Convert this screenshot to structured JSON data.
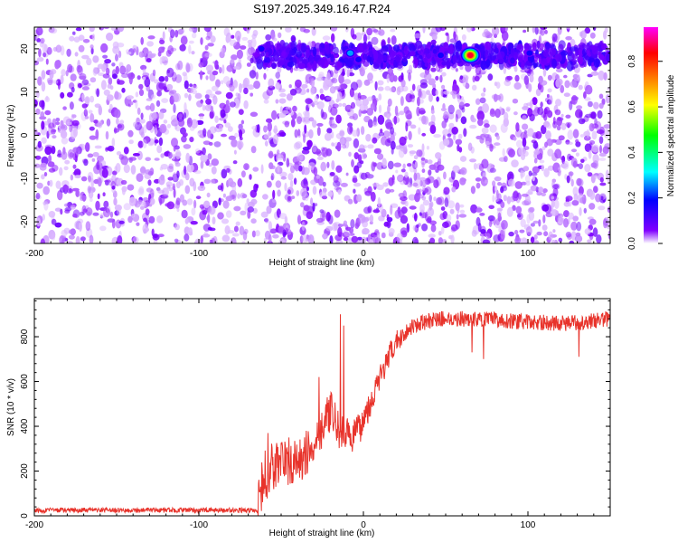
{
  "title": "S197.2025.349.16.47.R24",
  "chart_data": [
    {
      "type": "heatmap",
      "xlabel": "Height of straight line (km)",
      "ylabel": "Frequency (Hz)",
      "xlim": [
        -200,
        150
      ],
      "ylim": [
        -25,
        25
      ],
      "xticks": [
        -200,
        -100,
        0,
        100
      ],
      "yticks": [
        -20,
        -10,
        0,
        10,
        20
      ],
      "colorbar": {
        "label": "Normalized spectral amplitude",
        "range": [
          0,
          0.95
        ],
        "ticks": [
          "0.0",
          "0.2",
          "0.4",
          "0.6",
          "0.8"
        ],
        "tick_values": [
          0.0,
          0.2,
          0.4,
          0.6,
          0.8
        ],
        "colors": [
          "#ffffff",
          "#8000ff",
          "#0000ff",
          "#00ffff",
          "#00ff00",
          "#ffff00",
          "#ff8000",
          "#ff0000",
          "#ff00ff"
        ]
      },
      "signal_band_hz": [
        16,
        21
      ],
      "dropout_columns_km": [
        -62,
        64
      ],
      "hot_spots": [
        {
          "x": -62,
          "y": 20,
          "amp": 0.25
        },
        {
          "x": -8,
          "y": 19,
          "amp": 0.28
        },
        {
          "x": -3,
          "y": 17.5,
          "amp": 0.22
        },
        {
          "x": 47,
          "y": 18.5,
          "amp": 0.27
        },
        {
          "x": 65,
          "y": 18.5,
          "amp": 0.9
        },
        {
          "x": 101,
          "y": 19,
          "amp": 0.22
        }
      ]
    },
    {
      "type": "line",
      "xlabel": "Height of straight line (km)",
      "ylabel": "SNR (10 * v/v)",
      "xlim": [
        -200,
        150
      ],
      "ylim": [
        0,
        970
      ],
      "xticks": [
        -200,
        -100,
        0,
        100
      ],
      "yticks": [
        0,
        200,
        400,
        600,
        800
      ],
      "color": "#e8332b",
      "trend": [
        {
          "x": -200,
          "y": 25
        },
        {
          "x": -64,
          "y": 25
        },
        {
          "x": -60,
          "y": 180
        },
        {
          "x": -50,
          "y": 250
        },
        {
          "x": -40,
          "y": 230
        },
        {
          "x": -30,
          "y": 320
        },
        {
          "x": -25,
          "y": 400
        },
        {
          "x": -20,
          "y": 470
        },
        {
          "x": -15,
          "y": 380
        },
        {
          "x": -8,
          "y": 350
        },
        {
          "x": -3,
          "y": 380
        },
        {
          "x": 5,
          "y": 520
        },
        {
          "x": 12,
          "y": 650
        },
        {
          "x": 20,
          "y": 780
        },
        {
          "x": 30,
          "y": 850
        },
        {
          "x": 45,
          "y": 880
        },
        {
          "x": 60,
          "y": 880
        },
        {
          "x": 80,
          "y": 875
        },
        {
          "x": 100,
          "y": 865
        },
        {
          "x": 125,
          "y": 860
        },
        {
          "x": 150,
          "y": 880
        }
      ],
      "spikes": [
        {
          "x": -14,
          "y": 900
        },
        {
          "x": -12,
          "y": 850
        },
        {
          "x": -27,
          "y": 620
        },
        {
          "x": -58,
          "y": 370
        },
        {
          "x": 66,
          "y": 730
        },
        {
          "x": 73,
          "y": 700
        },
        {
          "x": 131,
          "y": 710
        }
      ]
    }
  ]
}
